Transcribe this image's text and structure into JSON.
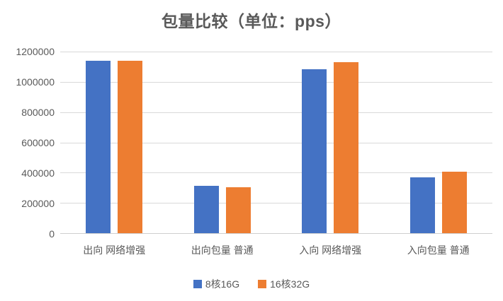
{
  "chart_data": {
    "type": "bar",
    "title": "包量比较（单位：pps）",
    "categories": [
      "出向 网络增强",
      "出向包量 普通",
      "入向 网络增强",
      "入向包量 普通"
    ],
    "series": [
      {
        "name": "8核16G",
        "color": "#4472C4",
        "values": [
          1140000,
          315000,
          1085000,
          370000
        ]
      },
      {
        "name": "16核32G",
        "color": "#ED7D31",
        "values": [
          1140000,
          305000,
          1130000,
          405000
        ]
      }
    ],
    "xlabel": "",
    "ylabel": "",
    "ylim": [
      0,
      1200000
    ],
    "yticks": [
      0,
      200000,
      400000,
      600000,
      800000,
      1000000,
      1200000
    ],
    "ytick_labels": [
      "0",
      "200000",
      "400000",
      "600000",
      "800000",
      "1000000",
      "1200000"
    ],
    "grid": true,
    "legend_position": "bottom"
  },
  "colors": {
    "title_text": "#595959",
    "axis_text": "#595959",
    "gridline": "#D9D9D9",
    "axis_line": "#CFCFCF",
    "background": "#FFFFFF"
  }
}
